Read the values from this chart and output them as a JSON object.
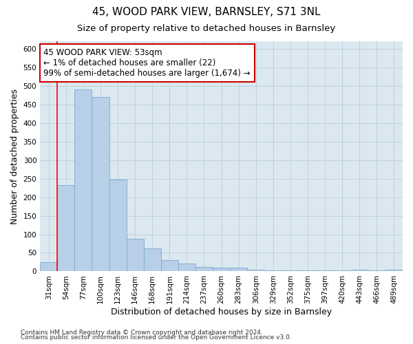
{
  "title_line1": "45, WOOD PARK VIEW, BARNSLEY, S71 3NL",
  "title_line2": "Size of property relative to detached houses in Barnsley",
  "xlabel": "Distribution of detached houses by size in Barnsley",
  "ylabel": "Number of detached properties",
  "categories": [
    "31sqm",
    "54sqm",
    "77sqm",
    "100sqm",
    "123sqm",
    "146sqm",
    "168sqm",
    "191sqm",
    "214sqm",
    "237sqm",
    "260sqm",
    "283sqm",
    "306sqm",
    "329sqm",
    "352sqm",
    "375sqm",
    "397sqm",
    "420sqm",
    "443sqm",
    "466sqm",
    "489sqm"
  ],
  "values": [
    25,
    232,
    490,
    470,
    247,
    88,
    62,
    30,
    22,
    12,
    11,
    10,
    5,
    3,
    3,
    3,
    3,
    3,
    5,
    2,
    4
  ],
  "bar_color": "#b8cfe8",
  "bar_edge_color": "#7aaad0",
  "red_line_x": 0.5,
  "annotation_text": "45 WOOD PARK VIEW: 53sqm\n← 1% of detached houses are smaller (22)\n99% of semi-detached houses are larger (1,674) →",
  "annotation_box_color": "#ffffff",
  "annotation_box_edge_color": "#cc0000",
  "ylim": [
    0,
    620
  ],
  "yticks": [
    0,
    50,
    100,
    150,
    200,
    250,
    300,
    350,
    400,
    450,
    500,
    550,
    600
  ],
  "footer_line1": "Contains HM Land Registry data © Crown copyright and database right 2024.",
  "footer_line2": "Contains public sector information licensed under the Open Government Licence v3.0.",
  "background_color": "#ffffff",
  "plot_bg_color": "#dce8f0",
  "grid_color": "#bdd0e0",
  "title_fontsize": 11,
  "subtitle_fontsize": 9.5,
  "axis_label_fontsize": 9,
  "tick_fontsize": 7.5,
  "annotation_fontsize": 8.5,
  "footer_fontsize": 6.5
}
